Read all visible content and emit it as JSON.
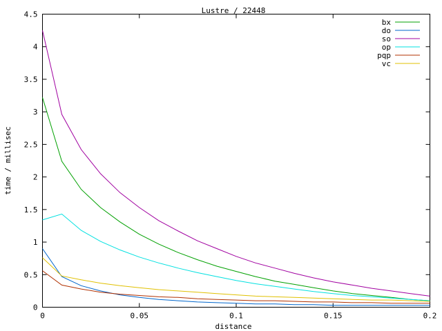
{
  "chart_data": {
    "type": "line",
    "title": "Lustre / 22448",
    "xlabel": "distance",
    "ylabel": "time / millisec",
    "xlim": [
      0,
      0.2
    ],
    "ylim": [
      0,
      4.5
    ],
    "x_ticks": [
      "0",
      "0.05",
      "0.1",
      "0.15",
      "0.2"
    ],
    "y_ticks": [
      "0",
      "0.5",
      "1",
      "1.5",
      "2",
      "2.5",
      "3",
      "3.5",
      "4",
      "4.5"
    ],
    "legend_position": "top-right",
    "grid": false,
    "x": [
      0,
      0.01,
      0.02,
      0.03,
      0.04,
      0.05,
      0.06,
      0.07,
      0.08,
      0.09,
      0.1,
      0.11,
      0.12,
      0.13,
      0.14,
      0.15,
      0.16,
      0.17,
      0.18,
      0.19,
      0.2
    ],
    "series": [
      {
        "name": "bx",
        "color": "#00a000",
        "values": [
          3.22,
          2.24,
          1.81,
          1.53,
          1.31,
          1.12,
          0.97,
          0.84,
          0.73,
          0.63,
          0.55,
          0.47,
          0.4,
          0.35,
          0.3,
          0.25,
          0.21,
          0.18,
          0.15,
          0.12,
          0.1
        ]
      },
      {
        "name": "do",
        "color": "#0066cc",
        "values": [
          0.9,
          0.47,
          0.33,
          0.25,
          0.19,
          0.15,
          0.12,
          0.1,
          0.08,
          0.07,
          0.06,
          0.05,
          0.05,
          0.04,
          0.04,
          0.03,
          0.03,
          0.03,
          0.03,
          0.03,
          0.03
        ]
      },
      {
        "name": "so",
        "color": "#a000a0",
        "values": [
          4.25,
          2.96,
          2.42,
          2.05,
          1.76,
          1.53,
          1.33,
          1.17,
          1.02,
          0.9,
          0.78,
          0.68,
          0.6,
          0.52,
          0.45,
          0.39,
          0.34,
          0.29,
          0.25,
          0.21,
          0.17
        ]
      },
      {
        "name": "op",
        "color": "#00e0e0",
        "values": [
          1.34,
          1.43,
          1.18,
          1.01,
          0.88,
          0.77,
          0.68,
          0.6,
          0.53,
          0.47,
          0.41,
          0.36,
          0.32,
          0.28,
          0.24,
          0.21,
          0.18,
          0.16,
          0.14,
          0.12,
          0.1
        ]
      },
      {
        "name": "pqp",
        "color": "#b03000",
        "values": [
          0.56,
          0.34,
          0.28,
          0.23,
          0.2,
          0.18,
          0.16,
          0.15,
          0.13,
          0.12,
          0.11,
          0.1,
          0.1,
          0.09,
          0.08,
          0.08,
          0.07,
          0.07,
          0.06,
          0.06,
          0.06
        ]
      },
      {
        "name": "vc",
        "color": "#e0c000",
        "values": [
          0.76,
          0.48,
          0.42,
          0.37,
          0.33,
          0.3,
          0.27,
          0.25,
          0.23,
          0.21,
          0.19,
          0.17,
          0.16,
          0.15,
          0.14,
          0.13,
          0.12,
          0.11,
          0.11,
          0.1,
          0.09
        ]
      }
    ]
  }
}
